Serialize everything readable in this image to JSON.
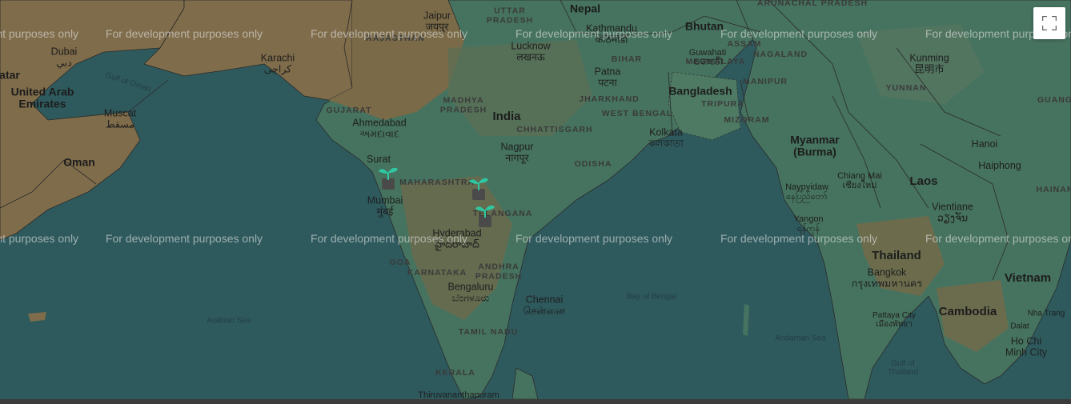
{
  "map": {
    "watermark_text": "For development purposes only",
    "colors": {
      "land": "#7f6c4a",
      "green_land": "#3f6f5c",
      "water": "#2e5a5e",
      "border": "#2a2a2a"
    },
    "countries": {
      "india": "India",
      "nepal": "Nepal",
      "bhutan": "Bhutan",
      "bangladesh": "Bangladesh",
      "myanmar": "Myanmar\n(Burma)",
      "thailand": "Thailand",
      "laos": "Laos",
      "cambodia": "Cambodia",
      "vietnam": "Vietnam",
      "oman": "Oman",
      "uae": "United Arab\nEmirates",
      "qatar": "atar"
    },
    "states": {
      "uttar_pradesh": "UTTAR\nPRADESH",
      "rajasthan": "RAJASTHAN",
      "gujarat": "GUJARAT",
      "madhya_pradesh": "MADHYA\nPRADESH",
      "chhattisgarh": "CHHATTISGARH",
      "maharashtra": "MAHARASHTRA",
      "telangana": "TELANGANA",
      "andhra_pradesh": "ANDHRA\nPRADESH",
      "karnataka": "KARNATAKA",
      "goa": "GOA",
      "tamil_nadu": "TAMIL NADU",
      "kerala": "KERALA",
      "odisha": "ODISHA",
      "jharkhand": "JHARKHAND",
      "west_bengal": "WEST BENGAL",
      "bihar": "BIHAR",
      "assam": "ASSAM",
      "meghalaya": "MEGHALAYA",
      "nagaland": "NAGALAND",
      "manipur": "MANIPUR",
      "tripura": "TRIPURA",
      "mizoram": "MIZORAM",
      "arunachal": "ARUNACHAL PRADESH",
      "yunnan": "YUNNAN",
      "guangxi": "GUANG",
      "hainan": "HAINAN"
    },
    "cities": {
      "jaipur": "Jaipur\nजयपुर",
      "lucknow": "Lucknow\nलखनऊ",
      "kathmandu": "Kathmandu\nकाठमाडौं",
      "patna": "Patna\nपटना",
      "guwahati": "Guwahati\nগুৱাহাটী",
      "kolkata": "Kolkata\nকলকাতা",
      "ahmedabad": "Ahmedabad\nઅમદાવાદ",
      "surat": "Surat",
      "mumbai": "Mumbai\nमुंबई",
      "nagpur": "Nagpur\nनागपूर",
      "hyderabad": "Hyderabad\nహైదరాబాద్",
      "bengaluru": "Bengaluru\nಬೆಂಗಳೂರು",
      "chennai": "Chennai\nசென்னை",
      "thiruvananthapuram": "Thiruvananthapuram",
      "karachi": "Karachi\nکراچی",
      "dubai": "Dubai\nدبي",
      "muscat": "Muscat\nمسقط",
      "kunming": "Kunming\n昆明市",
      "chiang_mai": "Chiang Mai\nเชียงใหม่",
      "naypyidaw": "Naypyidaw\nနေပြည်တော်",
      "yangon": "Yangon\nရန်ကုန်",
      "bangkok": "Bangkok\nกรุงเทพมหานคร",
      "pattaya": "Pattaya City\nเมืองพัทยา",
      "vientiane": "Vientiane\nວຽງຈັນ",
      "hanoi": "Hanoi",
      "haiphong": "Haiphong",
      "nha_trang": "Nha Trang",
      "dalat": "Dalat",
      "ho_chi_minh": "Ho Chi\nMinh City"
    },
    "seas": {
      "arabian_sea": "Arabian Sea",
      "bay_of_bengal": "Bay of Bengal",
      "andaman_sea": "Andaman Sea",
      "gulf_of_oman": "Gulf of Oman",
      "gulf_of_thailand": "Gulf of\nThailand"
    },
    "markers": [
      {
        "icon": "seedling-icon"
      },
      {
        "icon": "seedling-icon"
      },
      {
        "icon": "seedling-icon"
      }
    ]
  },
  "controls": {
    "fullscreen_icon": "fullscreen-icon"
  }
}
